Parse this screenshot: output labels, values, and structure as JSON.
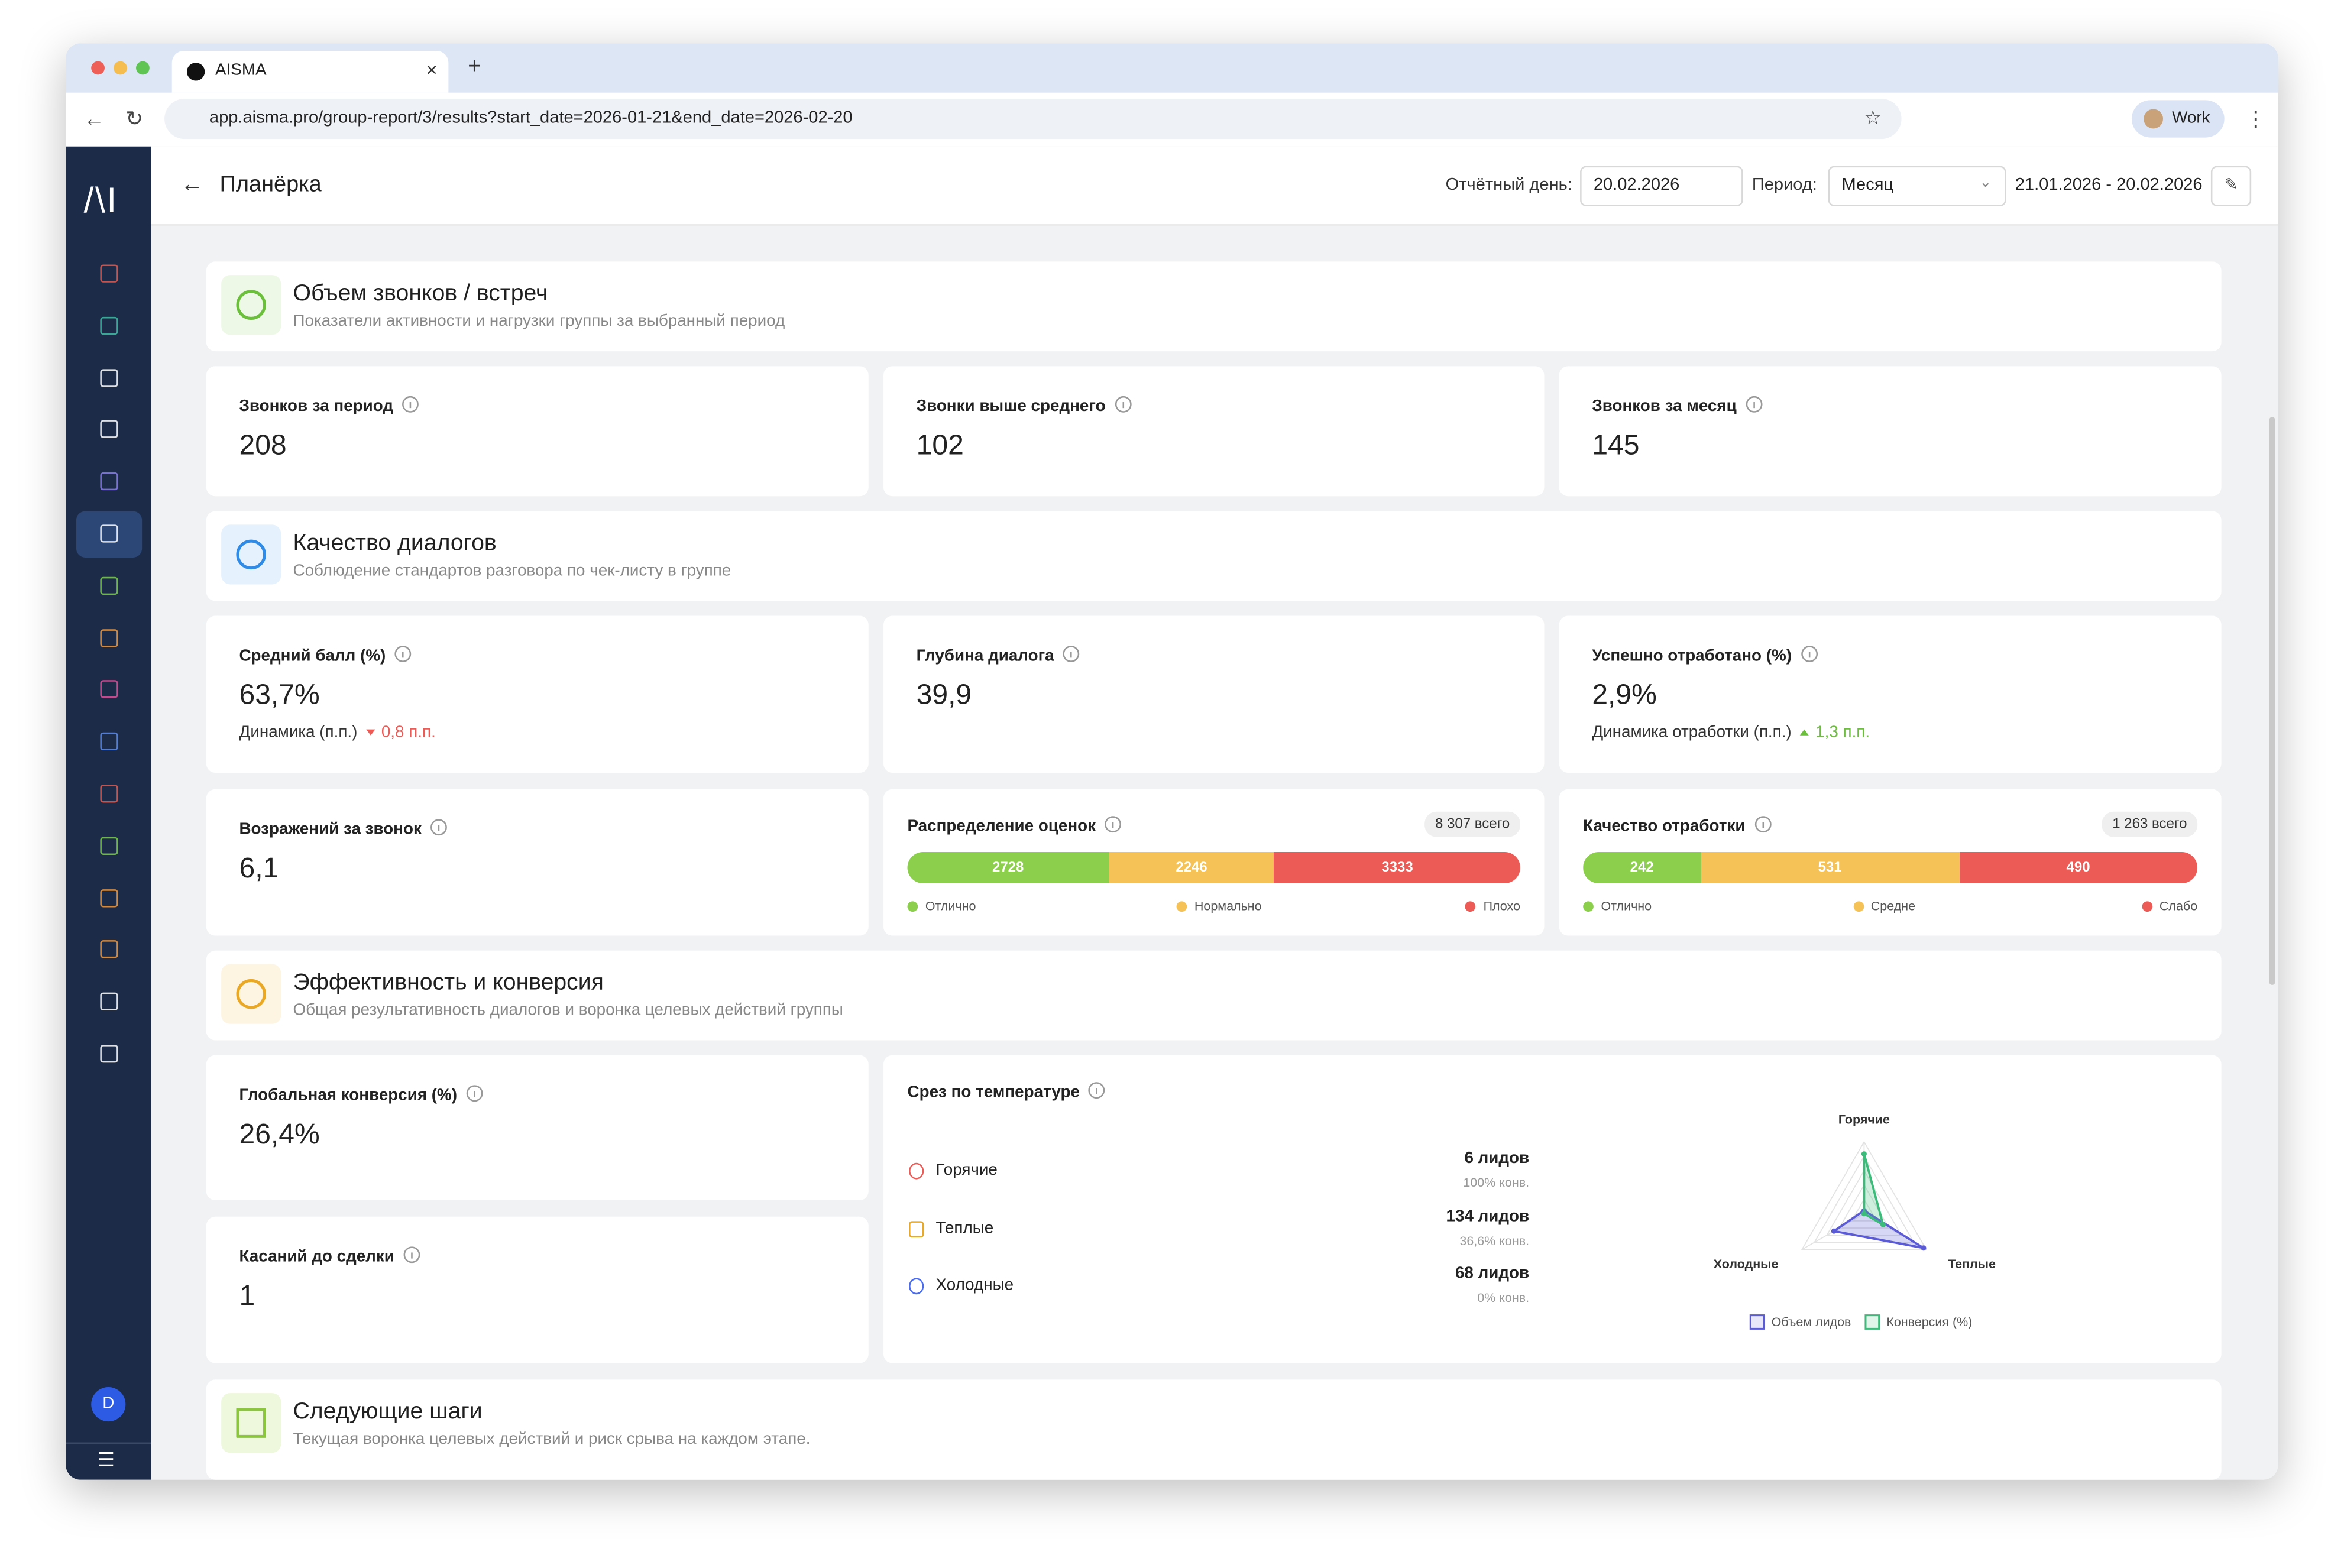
{
  "browser": {
    "tab_title": "AISMA",
    "url": "app.aisma.pro/group-report/3/results?start_date=2026-01-21&end_date=2026-02-20",
    "profile": "Work"
  },
  "sidebar": {
    "avatar": "D"
  },
  "header": {
    "title": "Планёрка",
    "report_day_label": "Отчётный день:",
    "report_day": "20.02.2026",
    "period_label": "Период:",
    "period": "Месяц",
    "range": "21.01.2026 - 20.02.2026"
  },
  "sections": [
    {
      "title": "Объем звонков / встреч",
      "subtitle": "Показатели активности и нагрузки группы за выбранный период",
      "icon_color": "#6cbf3c",
      "icon_bg": "#eef8e6"
    },
    {
      "title": "Качество диалогов",
      "subtitle": "Соблюдение стандартов разговора по чек-листу в группе",
      "icon_color": "#2f8be6",
      "icon_bg": "#e5f1fc"
    },
    {
      "title": "Эффективность и конверсия",
      "subtitle": "Общая результативность диалогов и воронка целевых действий группы",
      "icon_color": "#e9a825",
      "icon_bg": "#fdf4e1"
    },
    {
      "title": "Следующие шаги",
      "subtitle": "Текущая воронка целевых действий и риск срыва на каждом этапе.",
      "icon_color": "#8cc63f",
      "icon_bg": "#eef8dc"
    }
  ],
  "metrics": [
    {
      "label": "Звонков за период",
      "value": "208"
    },
    {
      "label": "Звонки выше среднего",
      "value": "102"
    },
    {
      "label": "Звонков за месяц",
      "value": "145"
    },
    {
      "label": "Средний балл (%)",
      "value": "63,7%",
      "dynamics_label": "Динамика (п.п.)",
      "dynamics": "0,8 п.п.",
      "trend": "down"
    },
    {
      "label": "Глубина диалога",
      "value": "39,9"
    },
    {
      "label": "Успешно отработано (%)",
      "value": "2,9%",
      "dynamics_label": "Динамика отработки (п.п.)",
      "dynamics": "1,3 п.п.",
      "trend": "up"
    },
    {
      "label": "Возражений за звонок",
      "value": "6,1"
    },
    {
      "label": "Глобальная конверсия (%)",
      "value": "26,4%"
    },
    {
      "label": "Касаний до сделки",
      "value": "1"
    }
  ],
  "distributions": [
    {
      "title": "Распределение оценок",
      "total": "8 307 всего",
      "segments": [
        {
          "label": "Отлично",
          "value": 2728,
          "color": "#8ccf4d"
        },
        {
          "label": "Нормально",
          "value": 2246,
          "color": "#f4c257"
        },
        {
          "label": "Плохо",
          "value": 3333,
          "color": "#ec5b56"
        }
      ]
    },
    {
      "title": "Качество отработки",
      "total": "1 263 всего",
      "segments": [
        {
          "label": "Отлично",
          "value": 242,
          "color": "#8ccf4d"
        },
        {
          "label": "Средне",
          "value": 531,
          "color": "#f4c257"
        },
        {
          "label": "Слабо",
          "value": 490,
          "color": "#ec5b56"
        }
      ]
    }
  ],
  "temperature": {
    "title": "Срез по температуре",
    "rows": [
      {
        "name": "Горячие",
        "leads": "6 лидов",
        "conversion": "100% конв.",
        "icon_color": "#ec5b56"
      },
      {
        "name": "Теплые",
        "leads": "134 лидов",
        "conversion": "36,6% конв.",
        "icon_color": "#e9a825"
      },
      {
        "name": "Холодные",
        "leads": "68 лидов",
        "conversion": "0% конв.",
        "icon_color": "#4a6cf0"
      }
    ]
  },
  "chart_data": {
    "type": "radar",
    "categories": [
      "Горячие",
      "Теплые",
      "Холодные"
    ],
    "series": [
      {
        "name": "Объем лидов",
        "color": "#5b5bd6",
        "values": [
          6,
          134,
          68
        ],
        "rlim": [
          0,
          140
        ]
      },
      {
        "name": "Конверсия (%)",
        "color": "#3dbb7a",
        "values": [
          100,
          36.6,
          0
        ],
        "rlim": [
          0,
          120
        ]
      }
    ]
  }
}
